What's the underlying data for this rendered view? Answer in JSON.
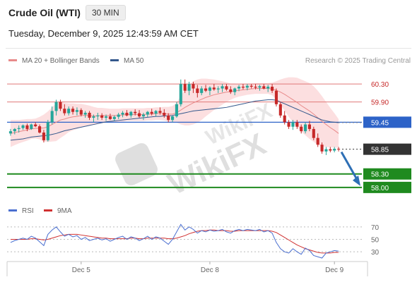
{
  "header": {
    "symbol": "Crude Oil (WTI)",
    "timeframe": "30 MIN",
    "timestamp": "Tuesday, December 9, 2025 12:43:59 AM CET"
  },
  "legend": {
    "ma20_label": "MA 20 + Bollinger Bands",
    "ma50_label": "MA 50",
    "credit": "Research © 2025 Trading Central",
    "rsi_label": "RSI",
    "ma9_label": "9MA"
  },
  "colors": {
    "up": "#26a69a",
    "down": "#c62828",
    "ma20": "#e88a8a",
    "ma50": "#34588c",
    "bb_fill": "#fbd4d6",
    "resistance": "#e07878",
    "pivot": "#2d63c8",
    "support": "#1f8a1f",
    "last": "#333333",
    "arrow": "#2e6fb5",
    "rsi": "#4a6fd0",
    "rsi_ma": "#d03030"
  },
  "chart_data": [
    {
      "type": "candlestick",
      "x_ticks": [
        "Dec 5",
        "Dec 8",
        "Dec 9"
      ],
      "ylim": [
        57.7,
        60.6
      ],
      "series": [
        {
          "name": "MA 20 + Bollinger Bands"
        },
        {
          "name": "MA 50"
        }
      ],
      "ohlc": [
        [
          59.2,
          59.3,
          59.15,
          59.25
        ],
        [
          59.25,
          59.32,
          59.18,
          59.3
        ],
        [
          59.3,
          59.38,
          59.22,
          59.32
        ],
        [
          59.32,
          59.4,
          59.28,
          59.38
        ],
        [
          59.38,
          59.42,
          59.25,
          59.3
        ],
        [
          59.3,
          59.42,
          59.28,
          59.4
        ],
        [
          59.4,
          59.45,
          59.34,
          59.36
        ],
        [
          59.36,
          59.4,
          59.2,
          59.22
        ],
        [
          59.22,
          59.28,
          59.0,
          59.05
        ],
        [
          59.05,
          59.5,
          59.02,
          59.45
        ],
        [
          59.45,
          59.8,
          59.4,
          59.7
        ],
        [
          59.7,
          59.95,
          59.6,
          59.9
        ],
        [
          59.9,
          59.95,
          59.7,
          59.75
        ],
        [
          59.75,
          59.85,
          59.6,
          59.65
        ],
        [
          59.65,
          59.8,
          59.6,
          59.75
        ],
        [
          59.75,
          59.8,
          59.62,
          59.68
        ],
        [
          59.68,
          59.78,
          59.6,
          59.72
        ],
        [
          59.72,
          59.76,
          59.58,
          59.62
        ],
        [
          59.62,
          59.7,
          59.55,
          59.66
        ],
        [
          59.66,
          59.7,
          59.5,
          59.55
        ],
        [
          59.55,
          59.62,
          59.45,
          59.58
        ],
        [
          59.58,
          59.66,
          59.5,
          59.6
        ],
        [
          59.6,
          59.65,
          59.5,
          59.55
        ],
        [
          59.55,
          59.62,
          59.48,
          59.58
        ],
        [
          59.58,
          59.64,
          59.5,
          59.52
        ],
        [
          59.52,
          59.6,
          59.48,
          59.57
        ],
        [
          59.57,
          59.66,
          59.52,
          59.62
        ],
        [
          59.62,
          59.7,
          59.56,
          59.66
        ],
        [
          59.66,
          59.72,
          59.58,
          59.6
        ],
        [
          59.6,
          59.7,
          59.55,
          59.68
        ],
        [
          59.68,
          59.74,
          59.6,
          59.65
        ],
        [
          59.65,
          59.72,
          59.55,
          59.58
        ],
        [
          59.58,
          59.66,
          59.5,
          59.62
        ],
        [
          59.62,
          59.7,
          59.56,
          59.68
        ],
        [
          59.68,
          59.75,
          59.6,
          59.64
        ],
        [
          59.64,
          59.72,
          59.58,
          59.7
        ],
        [
          59.7,
          59.78,
          59.62,
          59.66
        ],
        [
          59.66,
          59.74,
          59.55,
          59.6
        ],
        [
          59.6,
          59.65,
          59.45,
          59.5
        ],
        [
          59.5,
          59.6,
          59.45,
          59.58
        ],
        [
          59.58,
          59.9,
          59.55,
          59.85
        ],
        [
          59.85,
          60.4,
          59.8,
          60.3
        ],
        [
          60.3,
          60.4,
          60.1,
          60.15
        ],
        [
          60.15,
          60.35,
          60.05,
          60.3
        ],
        [
          60.3,
          60.35,
          60.1,
          60.2
        ],
        [
          60.2,
          60.28,
          60.0,
          60.1
        ],
        [
          60.1,
          60.25,
          60.05,
          60.2
        ],
        [
          60.2,
          60.28,
          60.12,
          60.15
        ],
        [
          60.15,
          60.25,
          60.05,
          60.22
        ],
        [
          60.22,
          60.3,
          60.15,
          60.18
        ],
        [
          60.18,
          60.25,
          60.1,
          60.2
        ],
        [
          60.2,
          60.3,
          60.12,
          60.25
        ],
        [
          60.25,
          60.3,
          60.15,
          60.18
        ],
        [
          60.18,
          60.25,
          60.08,
          60.12
        ],
        [
          60.12,
          60.22,
          60.05,
          60.2
        ],
        [
          60.2,
          60.28,
          60.14,
          60.24
        ],
        [
          60.24,
          60.3,
          60.18,
          60.22
        ],
        [
          60.22,
          60.3,
          60.16,
          60.26
        ],
        [
          60.26,
          60.3,
          60.2,
          60.24
        ],
        [
          60.24,
          60.3,
          60.18,
          60.22
        ],
        [
          60.22,
          60.28,
          60.15,
          60.25
        ],
        [
          60.25,
          60.3,
          60.18,
          60.2
        ],
        [
          60.2,
          60.28,
          60.12,
          60.24
        ],
        [
          60.24,
          60.3,
          60.1,
          60.15
        ],
        [
          60.15,
          60.2,
          59.8,
          59.85
        ],
        [
          59.85,
          59.9,
          59.55,
          59.6
        ],
        [
          59.6,
          59.7,
          59.4,
          59.45
        ],
        [
          59.45,
          59.5,
          59.3,
          59.35
        ],
        [
          59.35,
          59.5,
          59.28,
          59.45
        ],
        [
          59.45,
          59.5,
          59.3,
          59.35
        ],
        [
          59.35,
          59.4,
          59.2,
          59.25
        ],
        [
          59.25,
          59.45,
          59.2,
          59.4
        ],
        [
          59.4,
          59.48,
          59.25,
          59.3
        ],
        [
          59.3,
          59.35,
          59.05,
          59.1
        ],
        [
          59.1,
          59.2,
          58.9,
          58.95
        ],
        [
          58.95,
          59.0,
          58.75,
          58.8
        ],
        [
          58.8,
          58.9,
          58.72,
          58.85
        ],
        [
          58.85,
          58.9,
          58.78,
          58.82
        ],
        [
          58.82,
          58.9,
          58.78,
          58.86
        ],
        [
          58.86,
          58.9,
          58.8,
          58.85
        ]
      ],
      "ma20": [
        59.2,
        59.22,
        59.24,
        59.26,
        59.28,
        59.3,
        59.31,
        59.32,
        59.32,
        59.35,
        59.4,
        59.45,
        59.5,
        59.52,
        59.55,
        59.57,
        59.58,
        59.6,
        59.6,
        59.6,
        59.59,
        59.59,
        59.6,
        59.6,
        59.6,
        59.6,
        59.6,
        59.61,
        59.62,
        59.62,
        59.62,
        59.62,
        59.62,
        59.63,
        59.63,
        59.64,
        59.64,
        59.64,
        59.63,
        59.63,
        59.66,
        59.72,
        59.78,
        59.83,
        59.88,
        59.92,
        59.96,
        60.0,
        60.03,
        60.06,
        60.08,
        60.1,
        60.12,
        60.13,
        60.15,
        60.16,
        60.17,
        60.18,
        60.19,
        60.2,
        60.2,
        60.2,
        60.2,
        60.19,
        60.16,
        60.12,
        60.07,
        60.01,
        59.95,
        59.89,
        59.82,
        59.76,
        59.7,
        59.63,
        59.55,
        59.47,
        59.4,
        59.33,
        59.27,
        59.2
      ],
      "bb_width": [
        0.3,
        0.28,
        0.26,
        0.25,
        0.24,
        0.22,
        0.22,
        0.25,
        0.3,
        0.34,
        0.38,
        0.42,
        0.4,
        0.36,
        0.32,
        0.3,
        0.28,
        0.26,
        0.24,
        0.22,
        0.2,
        0.18,
        0.17,
        0.16,
        0.15,
        0.15,
        0.15,
        0.15,
        0.14,
        0.14,
        0.14,
        0.14,
        0.14,
        0.14,
        0.14,
        0.14,
        0.14,
        0.15,
        0.16,
        0.18,
        0.22,
        0.32,
        0.4,
        0.45,
        0.48,
        0.48,
        0.46,
        0.42,
        0.38,
        0.34,
        0.3,
        0.26,
        0.22,
        0.18,
        0.16,
        0.14,
        0.13,
        0.12,
        0.12,
        0.12,
        0.12,
        0.12,
        0.12,
        0.14,
        0.2,
        0.28,
        0.36,
        0.44,
        0.5,
        0.55,
        0.58,
        0.6,
        0.62,
        0.62,
        0.6,
        0.56,
        0.5,
        0.44,
        0.38,
        0.32
      ],
      "ma50": [
        59.05,
        59.06,
        59.07,
        59.08,
        59.1,
        59.12,
        59.13,
        59.14,
        59.15,
        59.16,
        59.18,
        59.2,
        59.23,
        59.26,
        59.28,
        59.3,
        59.32,
        59.34,
        59.36,
        59.38,
        59.4,
        59.42,
        59.44,
        59.46,
        59.47,
        59.48,
        59.49,
        59.5,
        59.51,
        59.52,
        59.53,
        59.54,
        59.55,
        59.56,
        59.57,
        59.58,
        59.58,
        59.59,
        59.59,
        59.6,
        59.62,
        59.64,
        59.66,
        59.68,
        59.7,
        59.71,
        59.72,
        59.73,
        59.74,
        59.75,
        59.76,
        59.77,
        59.78,
        59.8,
        59.82,
        59.84,
        59.86,
        59.88,
        59.9,
        59.92,
        59.93,
        59.94,
        59.95,
        59.95,
        59.94,
        59.9,
        59.86,
        59.82,
        59.78,
        59.74,
        59.7,
        59.66,
        59.62,
        59.58,
        59.54,
        59.5,
        59.48,
        59.46,
        59.45,
        59.44
      ],
      "levels": [
        {
          "value": 60.3,
          "label": "60.30",
          "kind": "resistance"
        },
        {
          "value": 59.9,
          "label": "59.90",
          "kind": "resistance"
        },
        {
          "value": 59.45,
          "label": "59.45",
          "kind": "pivot"
        },
        {
          "value": 58.85,
          "label": "58.85",
          "kind": "last"
        },
        {
          "value": 58.3,
          "label": "58.30",
          "kind": "support"
        },
        {
          "value": 58.0,
          "label": "58.00",
          "kind": "support"
        }
      ],
      "arrow": {
        "from": 58.85,
        "to": 58.0
      }
    },
    {
      "type": "line",
      "ylim": [
        20,
        80
      ],
      "y_ticks": [
        "70",
        "50",
        "30"
      ],
      "series": [
        {
          "name": "RSI",
          "values": [
            45,
            48,
            50,
            52,
            50,
            55,
            52,
            46,
            40,
            58,
            65,
            70,
            62,
            55,
            58,
            54,
            56,
            50,
            53,
            48,
            50,
            52,
            49,
            51,
            47,
            50,
            53,
            55,
            50,
            54,
            52,
            48,
            51,
            55,
            50,
            54,
            52,
            47,
            42,
            50,
            62,
            74,
            65,
            70,
            66,
            60,
            64,
            62,
            65,
            63,
            64,
            66,
            62,
            60,
            64,
            66,
            64,
            66,
            65,
            64,
            66,
            62,
            64,
            60,
            45,
            35,
            30,
            28,
            35,
            30,
            26,
            36,
            32,
            24,
            22,
            20,
            28,
            30,
            32,
            31
          ]
        },
        {
          "name": "9MA",
          "values": [
            50,
            50,
            50,
            50,
            50,
            51,
            51,
            50,
            49,
            50,
            52,
            54,
            56,
            57,
            58,
            58,
            58,
            57,
            56,
            55,
            54,
            53,
            52,
            52,
            51,
            51,
            51,
            51,
            51,
            52,
            52,
            51,
            51,
            52,
            52,
            52,
            52,
            52,
            51,
            51,
            52,
            54,
            56,
            59,
            61,
            63,
            64,
            64,
            65,
            65,
            64,
            64,
            64,
            63,
            63,
            64,
            64,
            64,
            64,
            64,
            64,
            64,
            64,
            63,
            61,
            57,
            53,
            49,
            45,
            41,
            38,
            35,
            33,
            31,
            29,
            28,
            28,
            28,
            29,
            29
          ]
        }
      ]
    }
  ]
}
